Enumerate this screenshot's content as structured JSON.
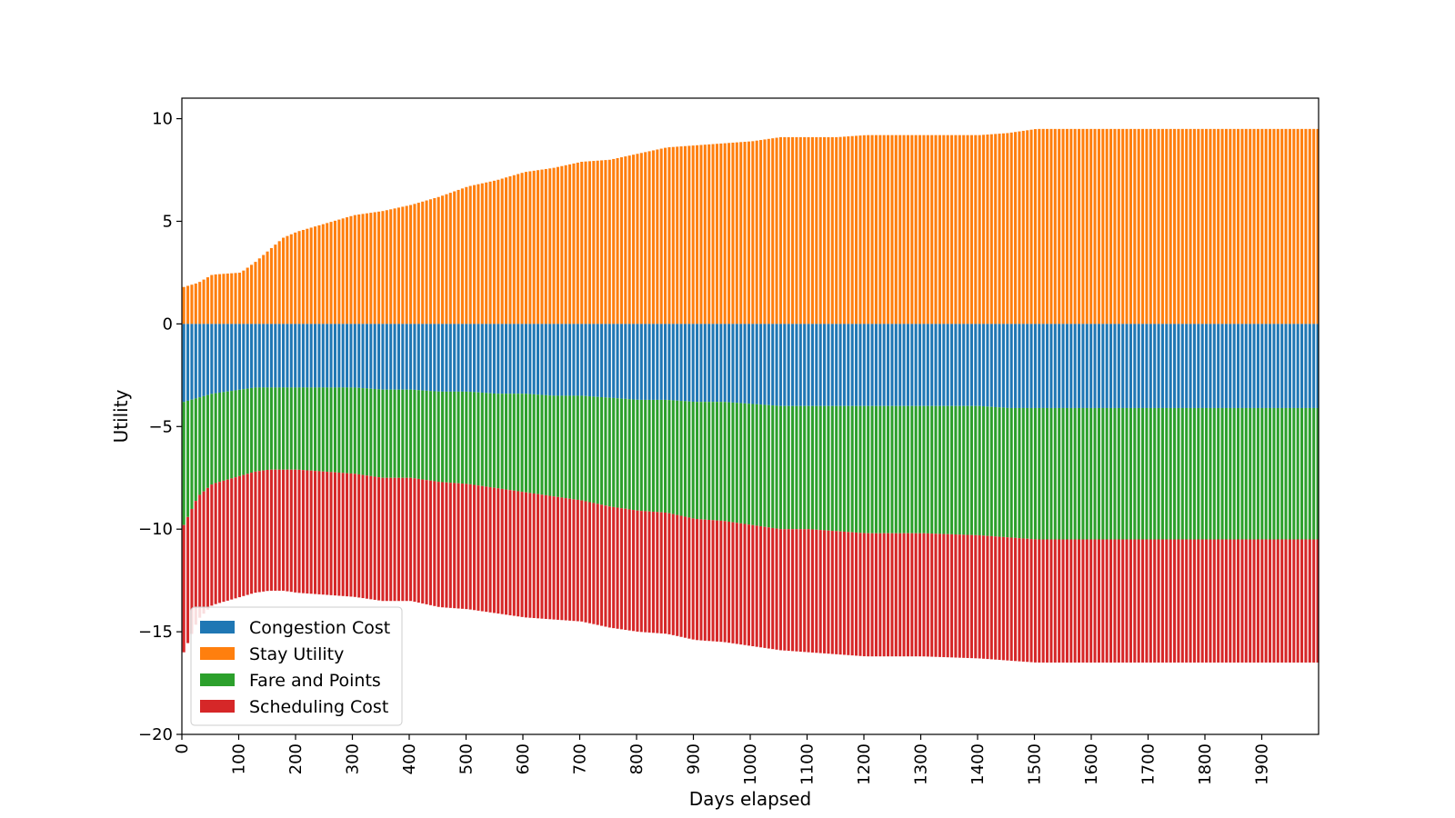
{
  "chart_data": {
    "type": "bar",
    "stacked": true,
    "title": "",
    "xlabel": "Days elapsed",
    "ylabel": "Utility",
    "xlim": [
      0,
      2000
    ],
    "ylim": [
      -20,
      11
    ],
    "xticks": [
      0,
      100,
      200,
      300,
      400,
      500,
      600,
      700,
      800,
      900,
      1000,
      1100,
      1200,
      1300,
      1400,
      1500,
      1600,
      1700,
      1800,
      1900
    ],
    "yticks": [
      10,
      5,
      0,
      -5,
      -10,
      -15,
      -20
    ],
    "ytick_labels": [
      "10",
      "5",
      "0",
      "−5",
      "−10",
      "−15",
      "−20"
    ],
    "bar_interval_days": 7,
    "legend_position": "bottom-left",
    "grid": false,
    "x": [
      0,
      25,
      50,
      100,
      125,
      150,
      175,
      200,
      250,
      300,
      350,
      400,
      450,
      500,
      550,
      600,
      650,
      700,
      750,
      800,
      850,
      900,
      950,
      1000,
      1050,
      1100,
      1150,
      1200,
      1300,
      1400,
      1450,
      1500,
      1600,
      1700,
      1800,
      1900,
      1995
    ],
    "series": [
      {
        "name": "Congestion Cost",
        "color": "#1f77b4",
        "values": [
          -3.8,
          -3.6,
          -3.4,
          -3.2,
          -3.1,
          -3.1,
          -3.1,
          -3.1,
          -3.1,
          -3.1,
          -3.2,
          -3.2,
          -3.3,
          -3.3,
          -3.4,
          -3.4,
          -3.5,
          -3.5,
          -3.6,
          -3.7,
          -3.7,
          -3.8,
          -3.8,
          -3.9,
          -4.0,
          -4.0,
          -4.0,
          -4.0,
          -4.0,
          -4.0,
          -4.1,
          -4.1,
          -4.1,
          -4.1,
          -4.1,
          -4.1,
          -4.1
        ]
      },
      {
        "name": "Stay Utility",
        "color": "#ff7f0e",
        "values": [
          1.8,
          2.0,
          2.4,
          2.5,
          3.0,
          3.6,
          4.2,
          4.5,
          4.9,
          5.3,
          5.5,
          5.8,
          6.2,
          6.7,
          7.0,
          7.4,
          7.6,
          7.9,
          8.0,
          8.3,
          8.6,
          8.7,
          8.8,
          8.9,
          9.1,
          9.1,
          9.1,
          9.2,
          9.2,
          9.2,
          9.3,
          9.5,
          9.5,
          9.5,
          9.5,
          9.5,
          9.5
        ]
      },
      {
        "name": "Fare and Points",
        "color": "#2ca02c",
        "values": [
          -6.0,
          -4.8,
          -4.4,
          -4.2,
          -4.1,
          -4.0,
          -4.0,
          -4.0,
          -4.1,
          -4.2,
          -4.3,
          -4.3,
          -4.4,
          -4.5,
          -4.6,
          -4.8,
          -4.9,
          -5.1,
          -5.3,
          -5.4,
          -5.5,
          -5.7,
          -5.8,
          -5.9,
          -6.0,
          -6.0,
          -6.1,
          -6.2,
          -6.2,
          -6.3,
          -6.3,
          -6.4,
          -6.4,
          -6.4,
          -6.4,
          -6.4,
          -6.4
        ]
      },
      {
        "name": "Scheduling Cost",
        "color": "#d62728",
        "values": [
          -6.2,
          -6.0,
          -5.9,
          -5.9,
          -5.9,
          -5.9,
          -5.9,
          -6.0,
          -6.0,
          -6.0,
          -6.0,
          -6.0,
          -6.1,
          -6.1,
          -6.1,
          -6.1,
          -6.0,
          -5.9,
          -5.9,
          -5.9,
          -5.9,
          -5.9,
          -5.9,
          -5.9,
          -5.9,
          -6.0,
          -6.0,
          -6.0,
          -6.0,
          -6.0,
          -6.0,
          -6.0,
          -6.0,
          -6.0,
          -6.0,
          -6.0,
          -6.0
        ]
      }
    ]
  }
}
